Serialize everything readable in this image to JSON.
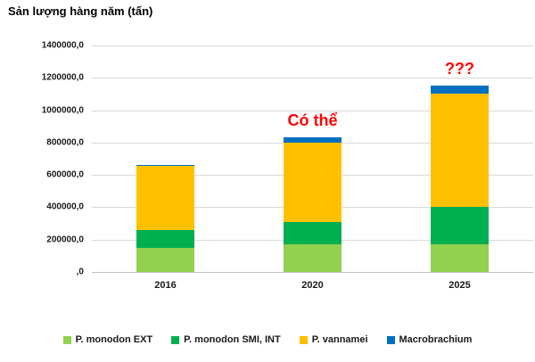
{
  "title": "Sản lượng hàng năm (tấn)",
  "chart_data": {
    "type": "bar",
    "stacked": true,
    "title": "Sản lượng hàng năm (tấn)",
    "xlabel": "",
    "ylabel": "",
    "categories": [
      "2016",
      "2020",
      "2025"
    ],
    "series": [
      {
        "name": "P. monodon EXT",
        "color": "#92D050",
        "values": [
          150000,
          170000,
          170000
        ]
      },
      {
        "name": "P. monodon SMI, INT",
        "color": "#00B050",
        "values": [
          110000,
          140000,
          230000
        ]
      },
      {
        "name": "P. vannamei",
        "color": "#FFC000",
        "values": [
          395000,
          490000,
          700000
        ]
      },
      {
        "name": "Macrobrachium",
        "color": "#0070C0",
        "values": [
          5000,
          30000,
          50000
        ]
      }
    ],
    "totals": [
      660000,
      830000,
      1150000
    ],
    "ylim": [
      0,
      1400000
    ],
    "y_ticks": [
      {
        "value": 1400000,
        "label": "1400000,0"
      },
      {
        "value": 1200000,
        "label": "1200000,0"
      },
      {
        "value": 1000000,
        "label": "1000000,0"
      },
      {
        "value": 800000,
        "label": "800000,0"
      },
      {
        "value": 600000,
        "label": "600000,0"
      },
      {
        "value": 400000,
        "label": "400000,0"
      },
      {
        "value": 200000,
        "label": "200000,0"
      },
      {
        "value": 0,
        "label": ",0"
      }
    ],
    "grid": true,
    "legend_position": "bottom",
    "annotations": [
      {
        "text": "Có thể",
        "category": "2020",
        "color": "#FF0000"
      },
      {
        "text": "???",
        "category": "2025",
        "color": "#FF0000"
      }
    ]
  },
  "colors": {
    "gridline": "#D9D9D9",
    "axis_line": "#BFBFBF",
    "annotation_red": "#FF0000",
    "text": "#1a1a1a"
  }
}
